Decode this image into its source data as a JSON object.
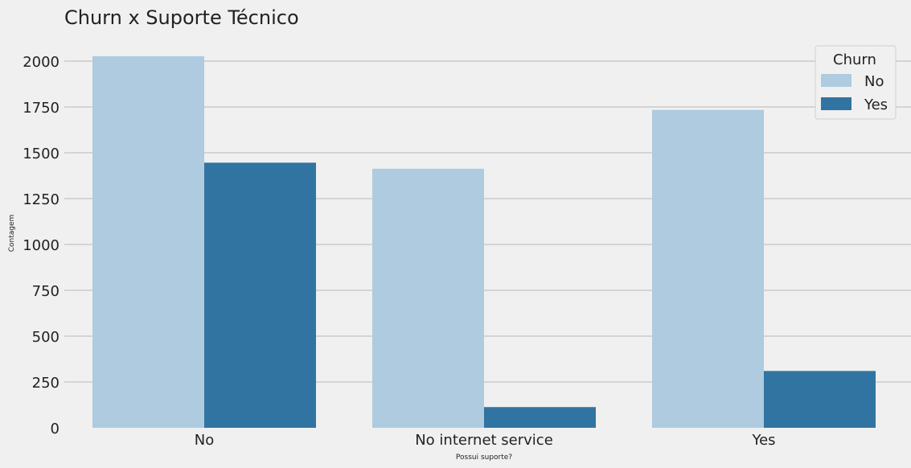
{
  "chart_data": {
    "type": "bar",
    "title": "Churn x Suporte Técnico",
    "xlabel": "Possui suporte?",
    "ylabel": "Contagem",
    "categories": [
      "No",
      "No internet service",
      "Yes"
    ],
    "series": [
      {
        "name": "No",
        "values": [
          2027,
          1413,
          1734
        ],
        "color": "#aecbdf"
      },
      {
        "name": "Yes",
        "values": [
          1446,
          113,
          310
        ],
        "color": "#3174a2"
      }
    ],
    "ylim": [
      0,
      2100
    ],
    "yticks": [
      0,
      250,
      500,
      750,
      1000,
      1250,
      1500,
      1750,
      2000
    ],
    "grid": "horizontal",
    "legend": {
      "title": "Churn",
      "placement": "top-right"
    },
    "colors": {
      "background": "#f0f0f0",
      "grid": "#cbcbcb"
    }
  }
}
